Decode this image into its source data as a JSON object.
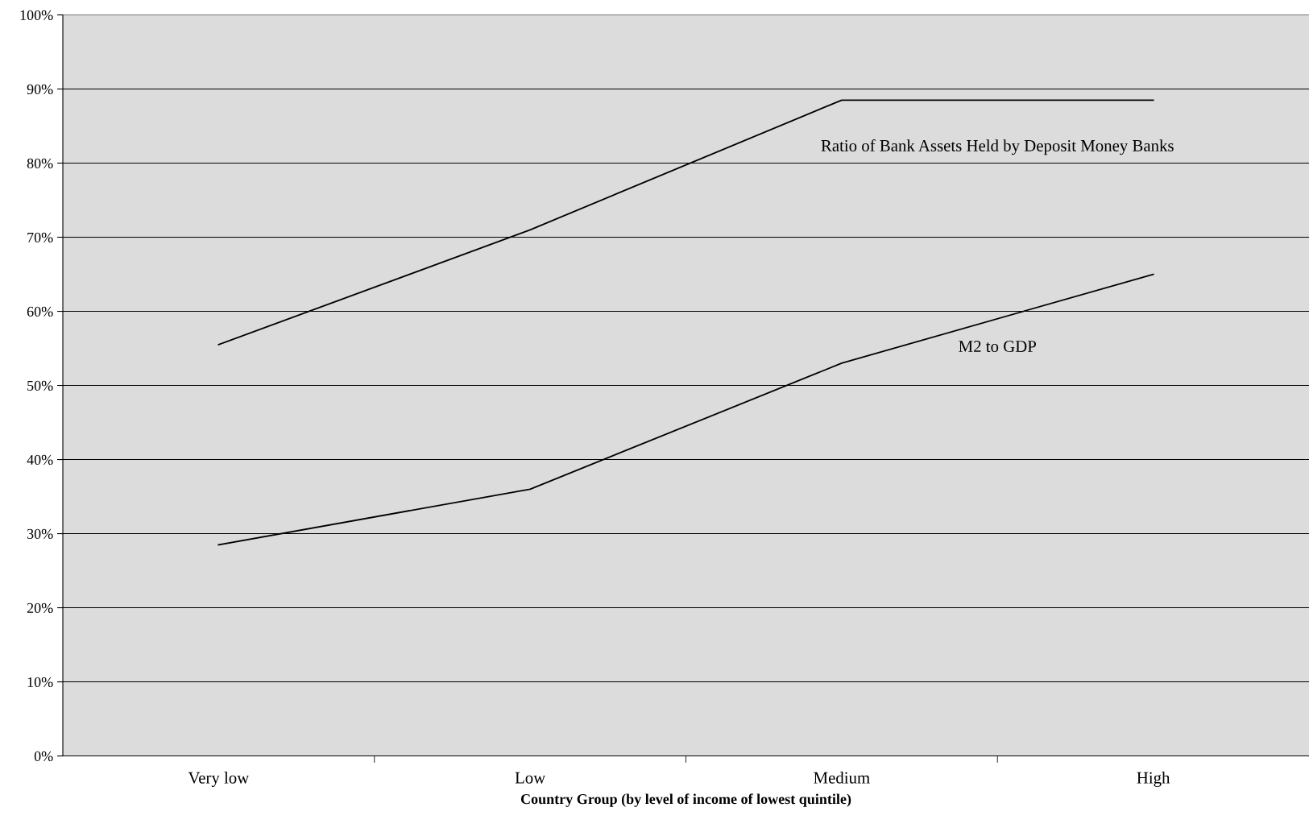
{
  "chart_data": {
    "type": "line",
    "xlabel": "Country Group (by level of income of lowest quintile)",
    "categories": [
      "Very low",
      "Low",
      "Medium",
      "High"
    ],
    "series": [
      {
        "name": "Ratio of Bank Assets Held by Deposit Money Banks",
        "color": "#000000",
        "values": [
          55.5,
          71,
          88.5,
          88.5
        ]
      },
      {
        "name": "M2 to GDP",
        "color": "#000000",
        "values": [
          28.5,
          36,
          53,
          65
        ]
      }
    ],
    "ylim": [
      0,
      100
    ],
    "yticks": [
      {
        "value": 0,
        "label": "0%"
      },
      {
        "value": 10,
        "label": "10%"
      },
      {
        "value": 20,
        "label": "20%"
      },
      {
        "value": 30,
        "label": "30%"
      },
      {
        "value": 40,
        "label": "40%"
      },
      {
        "value": 50,
        "label": "50%"
      },
      {
        "value": 60,
        "label": "60%"
      },
      {
        "value": 70,
        "label": "70%"
      },
      {
        "value": 80,
        "label": "80%"
      },
      {
        "value": 90,
        "label": "90%"
      },
      {
        "value": 100,
        "label": "100%"
      }
    ],
    "grid": "y",
    "marker": "none",
    "line_style": "solid"
  }
}
